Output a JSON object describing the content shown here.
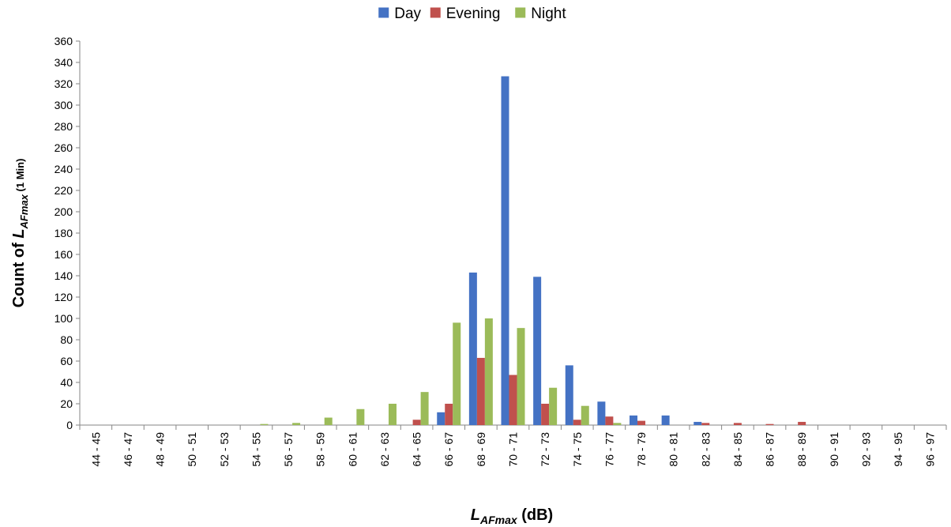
{
  "chart_data": {
    "type": "bar",
    "xlabel": {
      "main": "L",
      "sub": "AFmax",
      "suffix": " (dB)"
    },
    "ylabel": {
      "prefix": "Count of ",
      "main": "L",
      "sub": "AFmax",
      "suffix": " (1 Min)"
    },
    "ylim": [
      0,
      360
    ],
    "y_ticks": [
      0,
      20,
      40,
      60,
      80,
      100,
      120,
      140,
      160,
      180,
      200,
      220,
      240,
      260,
      280,
      300,
      320,
      340,
      360
    ],
    "grid": false,
    "legend_position": "top-center",
    "categories": [
      "44 - 45",
      "46 - 47",
      "48 - 49",
      "50 - 51",
      "52 - 53",
      "54 - 55",
      "56 - 57",
      "58 - 59",
      "60 - 61",
      "62 - 63",
      "64 - 65",
      "66 - 67",
      "68 - 69",
      "70 - 71",
      "72 - 73",
      "74 - 75",
      "76 - 77",
      "78 - 79",
      "80 - 81",
      "82 - 83",
      "84 - 85",
      "86 - 87",
      "88 - 89",
      "90 - 91",
      "92 - 93",
      "94 - 95",
      "96 - 97"
    ],
    "series": [
      {
        "name": "Day",
        "color": "#4472C4",
        "values": [
          0,
          0,
          0,
          0,
          0,
          0,
          0,
          0,
          0,
          0,
          0,
          12,
          143,
          327,
          139,
          56,
          22,
          9,
          9,
          3,
          0,
          0,
          0,
          0,
          0,
          0,
          0
        ]
      },
      {
        "name": "Evening",
        "color": "#C0504D",
        "values": [
          0,
          0,
          0,
          0,
          0,
          0,
          0,
          0,
          0,
          0,
          5,
          20,
          63,
          47,
          20,
          5,
          8,
          4,
          0,
          2,
          2,
          1,
          3,
          0,
          0,
          0,
          0
        ]
      },
      {
        "name": "Night",
        "color": "#9BBB59",
        "values": [
          0,
          0,
          0,
          0,
          0,
          1,
          2,
          7,
          15,
          20,
          31,
          96,
          100,
          91,
          35,
          18,
          2,
          0,
          0,
          0,
          0,
          0,
          0,
          0,
          0,
          0,
          0
        ]
      }
    ]
  }
}
